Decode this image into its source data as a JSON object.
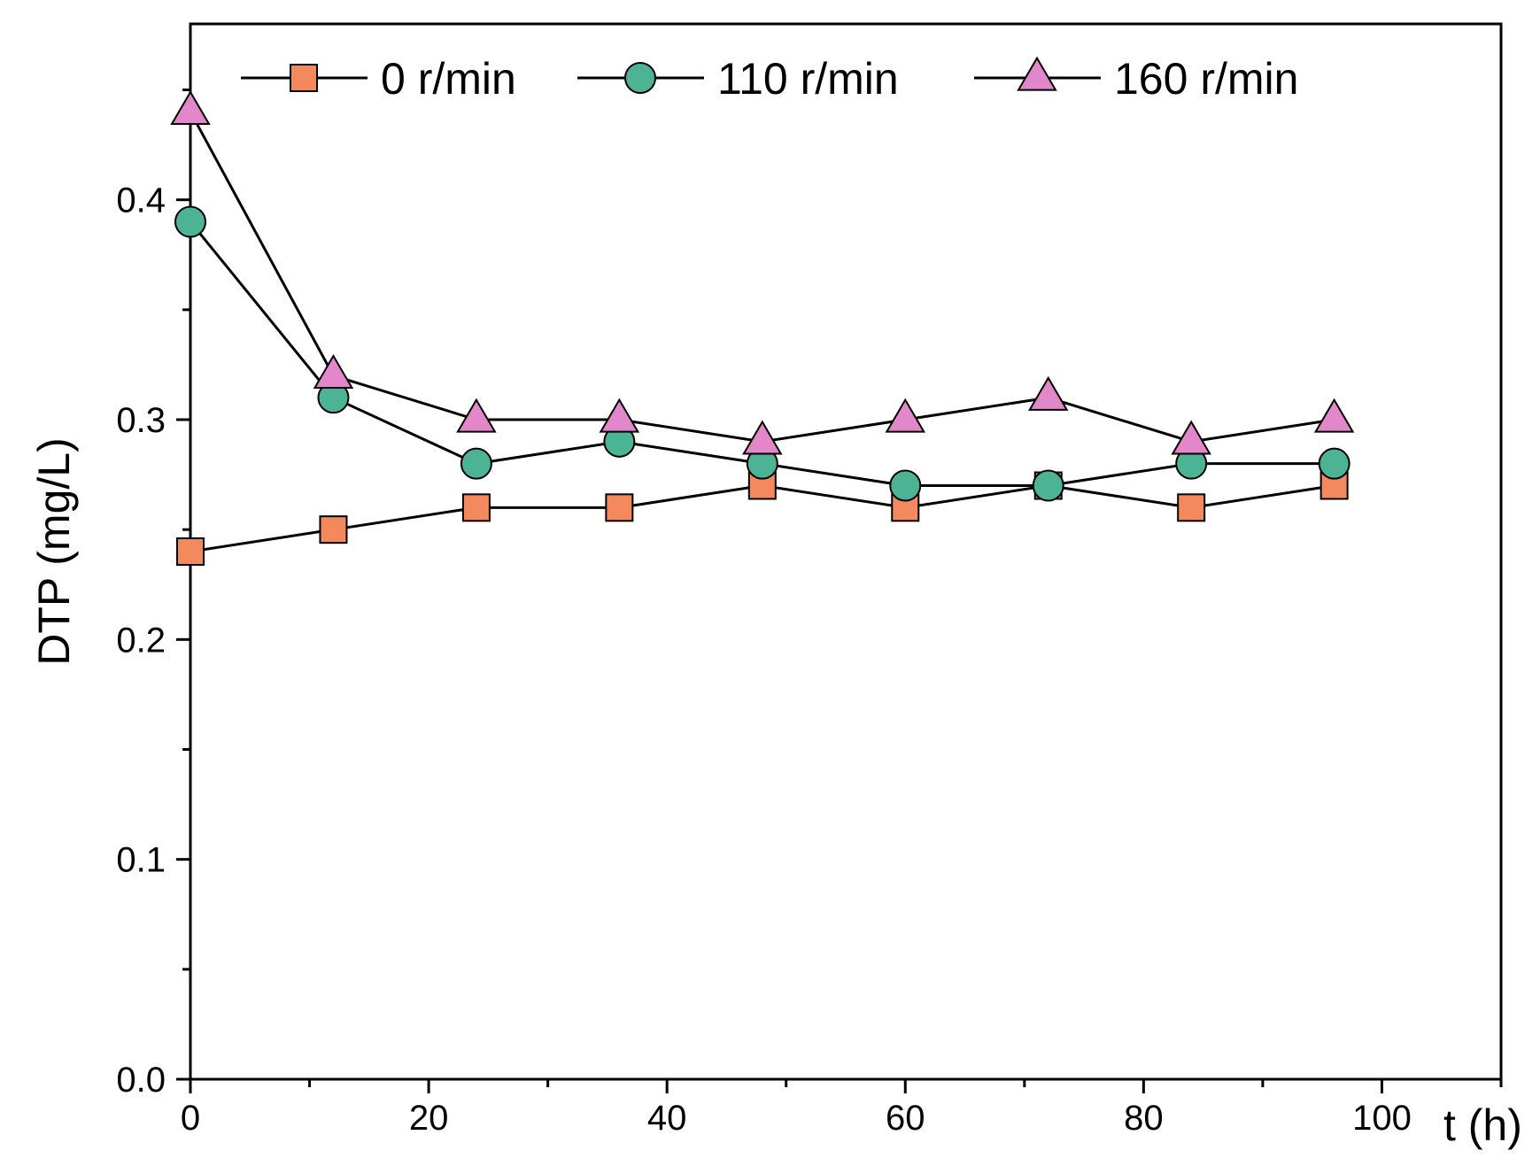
{
  "chart_data": {
    "type": "line",
    "title": "",
    "xlabel": "t (h)",
    "ylabel": "DTP (mg/L)",
    "xlim": [
      0,
      110
    ],
    "ylim": [
      0,
      0.48
    ],
    "xticks": [
      0,
      20,
      40,
      60,
      80,
      100
    ],
    "xtick_labels": [
      "0",
      "20",
      "40",
      "60",
      "80",
      "100"
    ],
    "xminor": [
      10,
      30,
      50,
      70,
      90,
      110
    ],
    "yticks": [
      0.0,
      0.1,
      0.2,
      0.3,
      0.4
    ],
    "ytick_labels": [
      "0.0",
      "0.1",
      "0.2",
      "0.3",
      "0.4"
    ],
    "yminor": [
      0.05,
      0.15,
      0.25,
      0.35,
      0.45
    ],
    "grid": false,
    "legend_position": "top",
    "x": [
      0,
      12,
      24,
      36,
      48,
      60,
      72,
      84,
      96
    ],
    "series": [
      {
        "name": "0 r/min",
        "marker": "square",
        "color": "#F4895E",
        "values": [
          0.24,
          0.25,
          0.26,
          0.26,
          0.27,
          0.26,
          0.27,
          0.26,
          0.27
        ]
      },
      {
        "name": "110 r/min",
        "marker": "circle",
        "color": "#4CB394",
        "values": [
          0.39,
          0.31,
          0.28,
          0.29,
          0.28,
          0.27,
          0.27,
          0.28,
          0.28
        ]
      },
      {
        "name": "160 r/min",
        "marker": "triangle",
        "color": "#E287CA",
        "values": [
          0.44,
          0.32,
          0.3,
          0.3,
          0.29,
          0.3,
          0.31,
          0.29,
          0.3
        ]
      }
    ]
  }
}
